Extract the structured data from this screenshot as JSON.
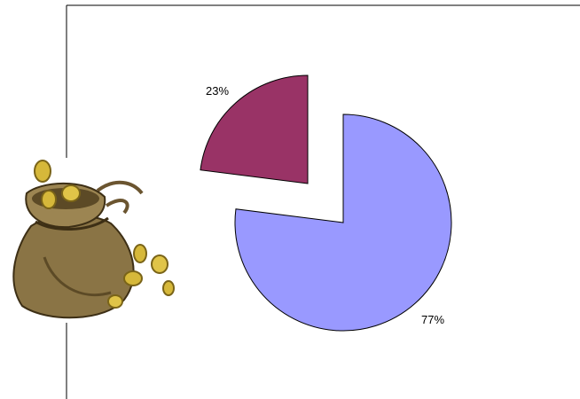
{
  "colors": {
    "slice_large": "#9999ff",
    "slice_small": "#993366",
    "frame": "#000000",
    "bag_body": "#8a7445",
    "bag_shadow": "#5c4a26",
    "coin": "#d6b83a"
  },
  "decoration": {
    "icon": "money-bag-icon"
  },
  "chart_data": {
    "type": "pie",
    "title": "",
    "start_angle_deg": 0,
    "direction": "clockwise",
    "exploded": true,
    "slices": [
      {
        "label": "77%",
        "value": 77,
        "color": "#9999ff"
      },
      {
        "label": "23%",
        "value": 23,
        "color": "#993366"
      }
    ]
  }
}
